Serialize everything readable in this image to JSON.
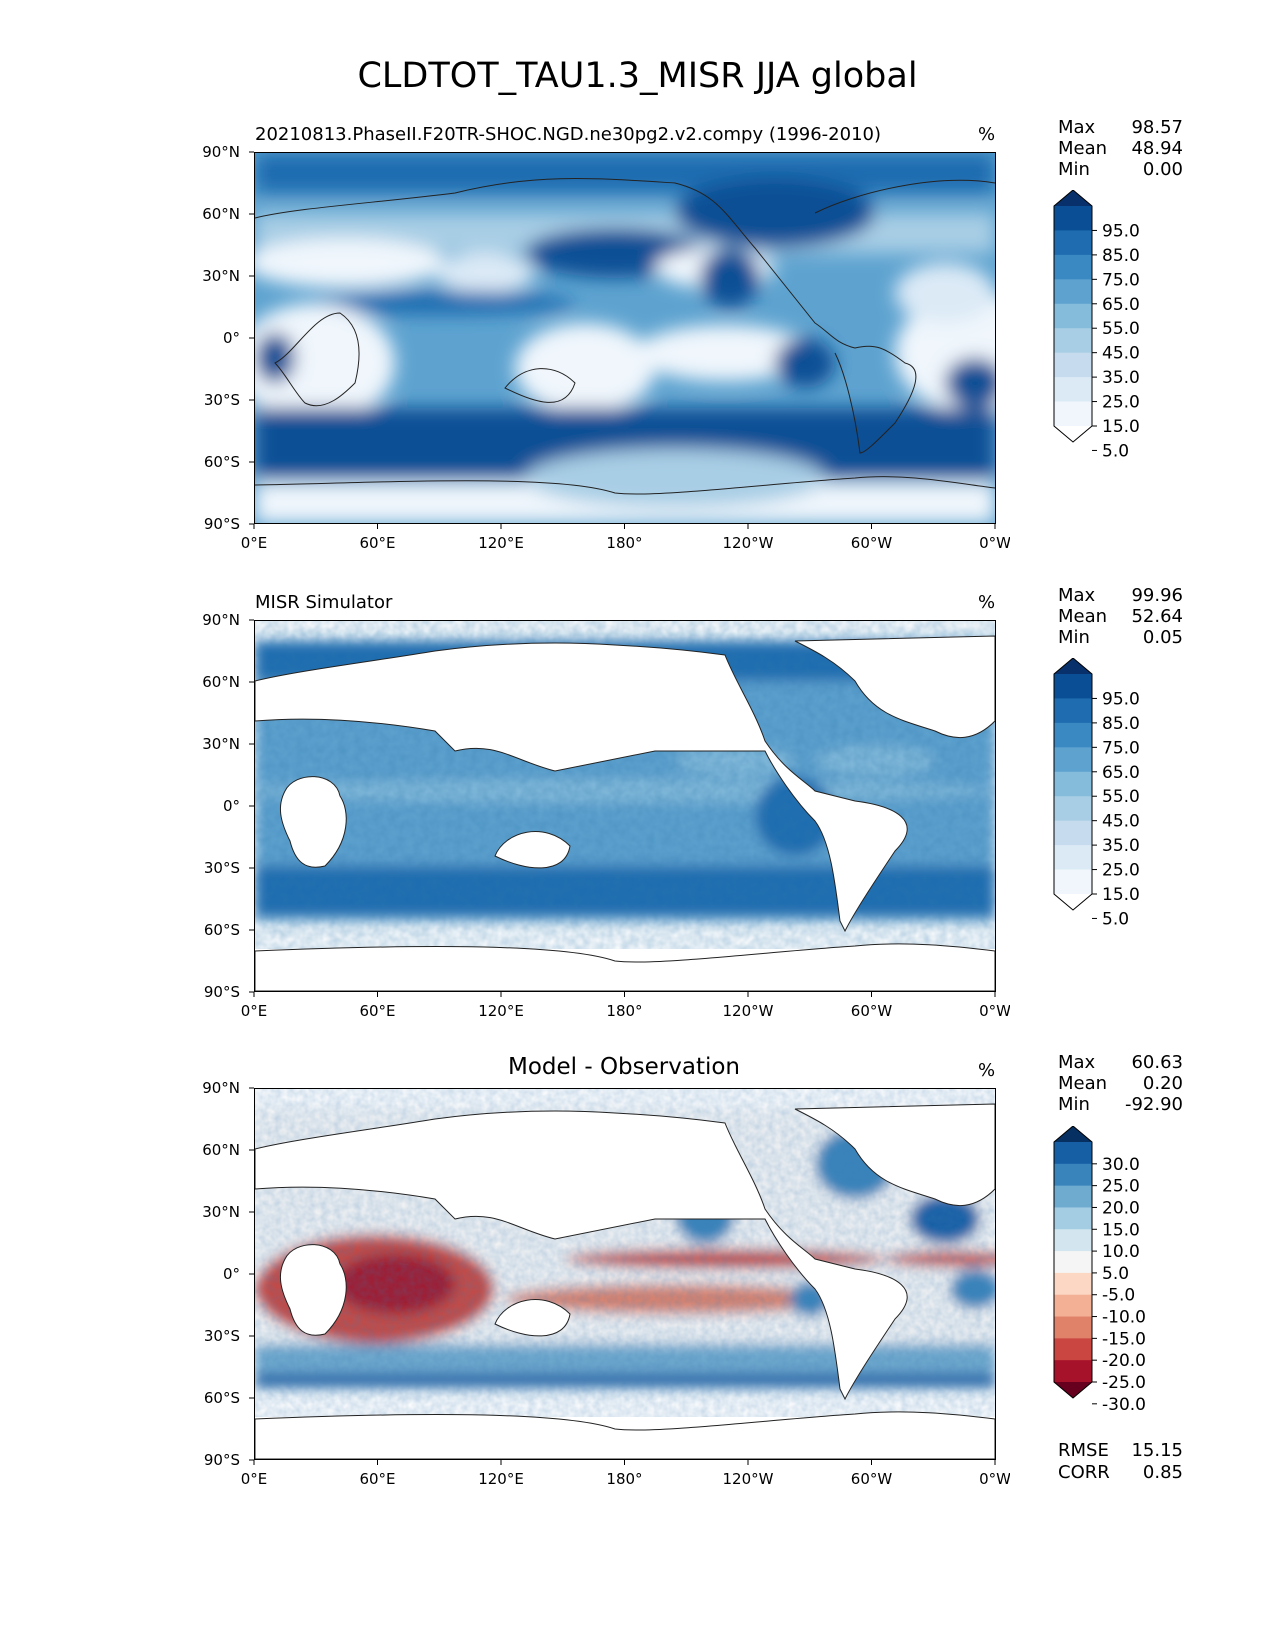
{
  "figure": {
    "title": "CLDTOT_TAU1.3_MISR JJA global"
  },
  "chart_data": [
    {
      "type": "heatmap",
      "title": "20210813.PhaseII.F20TR-SHOC.NGD.ne30pg2.v2.compy (1996-2010)",
      "units": "%",
      "stats": {
        "labels": [
          "Max",
          "Mean",
          "Min"
        ],
        "values": [
          "98.57",
          "48.94",
          "0.00"
        ]
      },
      "x_ticks": [
        "0°E",
        "60°E",
        "120°E",
        "180°",
        "120°W",
        "60°W",
        "0°W"
      ],
      "y_ticks": [
        "90°N",
        "60°N",
        "30°N",
        "0°",
        "30°S",
        "60°S",
        "90°S"
      ],
      "xlim": [
        0,
        360
      ],
      "ylim": [
        -90,
        90
      ],
      "colorbar": {
        "levels": [
          0,
          5,
          15,
          25,
          35,
          45,
          55,
          65,
          75,
          85,
          95,
          100
        ],
        "labels": [
          "95.0",
          "85.0",
          "75.0",
          "65.0",
          "55.0",
          "45.0",
          "35.0",
          "25.0",
          "15.0",
          "5.0"
        ],
        "colors": [
          "#ffffff",
          "#f0f6fc",
          "#dceaf6",
          "#c7dbef",
          "#a8cee5",
          "#85bcdc",
          "#5ea3d0",
          "#3b89c2",
          "#1f6cb0",
          "#0a4f95",
          "#08306b"
        ]
      }
    },
    {
      "type": "heatmap",
      "title": "MISR Simulator",
      "units": "%",
      "stats": {
        "labels": [
          "Max",
          "Mean",
          "Min"
        ],
        "values": [
          "99.96",
          "52.64",
          "0.05"
        ]
      },
      "x_ticks": [
        "0°E",
        "60°E",
        "120°E",
        "180°",
        "120°W",
        "60°W",
        "0°W"
      ],
      "y_ticks": [
        "90°N",
        "60°N",
        "30°N",
        "0°",
        "30°S",
        "60°S",
        "90°S"
      ],
      "xlim": [
        0,
        360
      ],
      "ylim": [
        -90,
        90
      ],
      "colorbar": {
        "levels": [
          0,
          5,
          15,
          25,
          35,
          45,
          55,
          65,
          75,
          85,
          95,
          100
        ],
        "labels": [
          "95.0",
          "85.0",
          "75.0",
          "65.0",
          "55.0",
          "45.0",
          "35.0",
          "25.0",
          "15.0",
          "5.0"
        ],
        "colors": [
          "#ffffff",
          "#f0f6fc",
          "#dceaf6",
          "#c7dbef",
          "#a8cee5",
          "#85bcdc",
          "#5ea3d0",
          "#3b89c2",
          "#1f6cb0",
          "#0a4f95",
          "#08306b"
        ]
      }
    },
    {
      "type": "heatmap",
      "title": "Model - Observation",
      "units": "%",
      "stats": {
        "labels": [
          "Max",
          "Mean",
          "Min"
        ],
        "values": [
          "60.63",
          "0.20",
          "-92.90"
        ]
      },
      "metrics": {
        "labels": [
          "RMSE",
          "CORR"
        ],
        "values": [
          "15.15",
          "0.85"
        ]
      },
      "x_ticks": [
        "0°E",
        "60°E",
        "120°E",
        "180°",
        "120°W",
        "60°W",
        "0°W"
      ],
      "y_ticks": [
        "90°N",
        "60°N",
        "30°N",
        "0°",
        "30°S",
        "60°S",
        "90°S"
      ],
      "xlim": [
        0,
        360
      ],
      "ylim": [
        -90,
        90
      ],
      "colorbar": {
        "levels": [
          -35,
          -30,
          -25,
          -20,
          -15,
          -10,
          -5,
          5,
          10,
          15,
          20,
          25,
          30,
          35
        ],
        "labels": [
          "30.0",
          "25.0",
          "20.0",
          "15.0",
          "10.0",
          "5.0",
          "-5.0",
          "-10.0",
          "-15.0",
          "-20.0",
          "-25.0",
          "-30.0"
        ],
        "colors": [
          "#67001f",
          "#a5122a",
          "#ca4741",
          "#e0826a",
          "#f4b095",
          "#fbd7c4",
          "#f5f5f5",
          "#d3e6f0",
          "#a4cde3",
          "#6faacf",
          "#3884bb",
          "#175fa5",
          "#053061"
        ]
      }
    }
  ]
}
